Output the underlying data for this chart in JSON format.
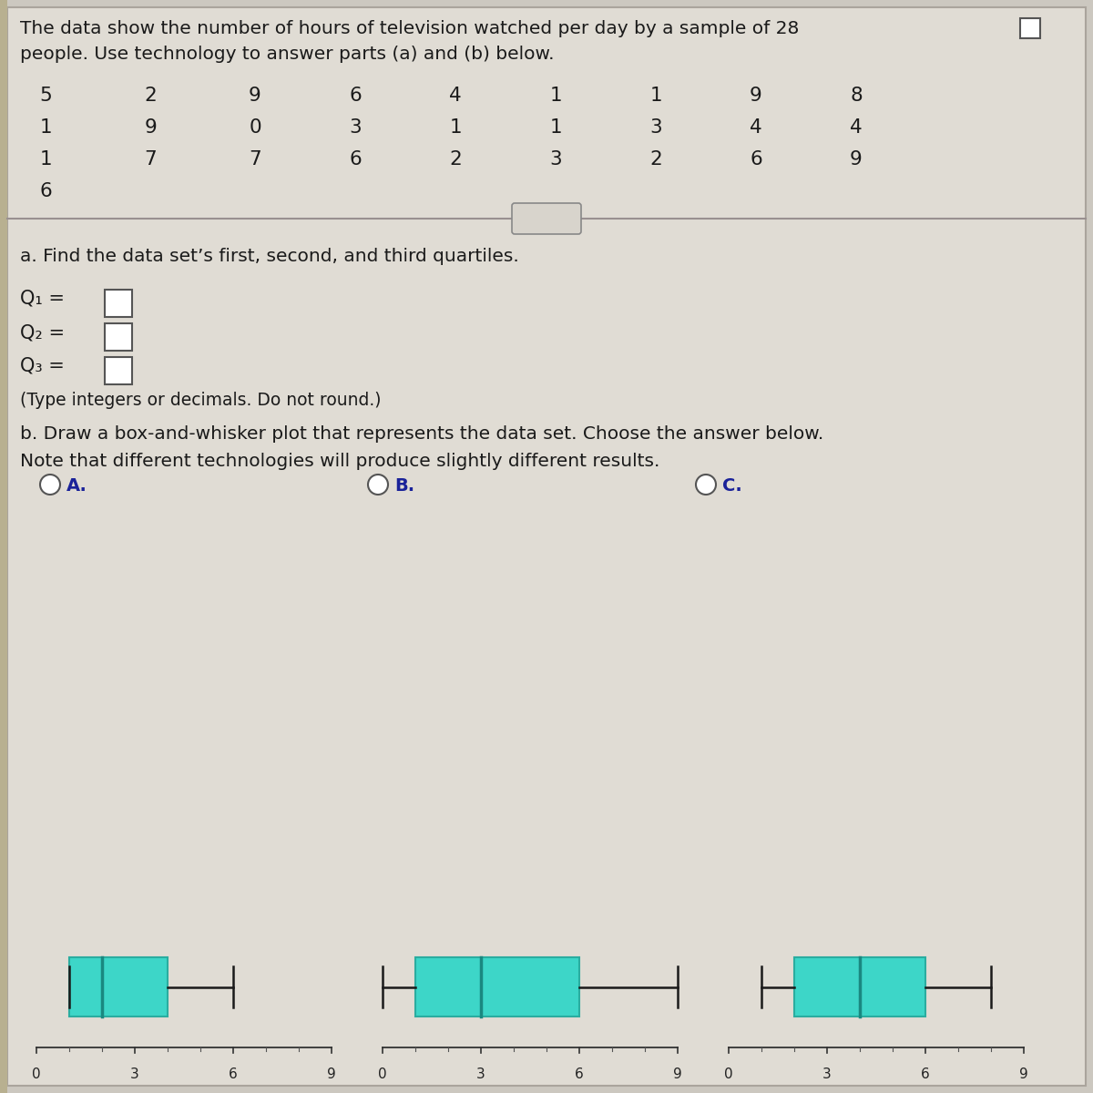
{
  "title_line1": "The data show the number of hours of television watched per day by a sample of 28",
  "title_line2": "people. Use technology to answer parts (a) and (b) below.",
  "data_grid": [
    [
      5,
      2,
      9,
      6,
      4,
      1,
      1,
      9,
      8
    ],
    [
      1,
      9,
      0,
      3,
      1,
      1,
      3,
      4,
      4
    ],
    [
      1,
      7,
      7,
      6,
      2,
      3,
      2,
      6,
      9
    ],
    [
      6
    ]
  ],
  "part_a_text": "a. Find the data set’s first, second, and third quartiles.",
  "q1_label": "Q₁ =",
  "q2_label": "Q₂ =",
  "q3_label": "Q₃ =",
  "type_note": "(Type integers or decimals. Do not round.)",
  "part_b_line1": "b. Draw a box-and-whisker plot that represents the data set. Choose the answer below.",
  "part_b_line2": "Note that different technologies will produce slightly different results.",
  "box_A": {
    "label": "A.",
    "min_val": 1,
    "q1": 1,
    "median": 2,
    "q3": 4,
    "max_val": 6
  },
  "box_B": {
    "label": "B.",
    "min_val": 0,
    "q1": 1,
    "median": 3,
    "q3": 6,
    "max_val": 9
  },
  "box_C": {
    "label": "C.",
    "min_val": 1,
    "q1": 2,
    "median": 4,
    "q3": 6,
    "max_val": 8
  },
  "box_color": "#3dd6c8",
  "box_edge_color": "#2aada0",
  "median_color": "#1a8880",
  "bg_color": "#ccc8c0",
  "panel_bg": "#e0dcd4",
  "text_color": "#1a1a1a",
  "radio_label_color": "#1a2299",
  "xmin": 0,
  "xmax": 9
}
